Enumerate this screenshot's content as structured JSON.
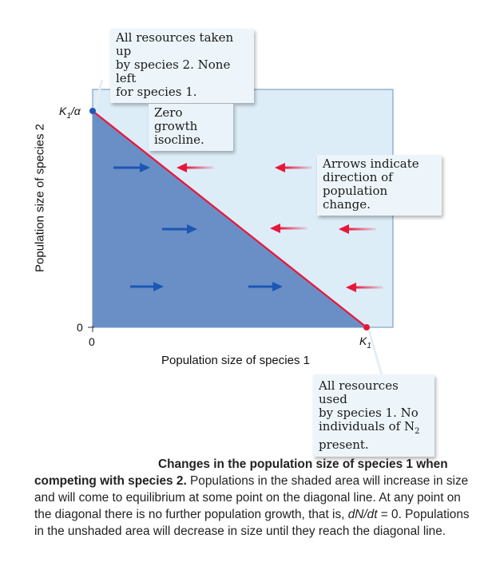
{
  "callouts": {
    "top": [
      "All resources taken up",
      "by species 2. None left",
      "for species 1."
    ],
    "isocline": [
      "Zero growth",
      "isocline."
    ],
    "arrows": [
      "Arrows indicate",
      "direction of",
      "population change."
    ],
    "bottom_lines": [
      "All resources used",
      "by species 1. No"
    ],
    "bottom_n2_prefix": "individuals of N",
    "bottom_n2_sub": "2",
    "bottom_last": "present."
  },
  "axes": {
    "x_label": "Population size of species 1",
    "y_label": "Population size of species 2",
    "x_origin_tick": "0",
    "y_origin_tick": "0",
    "k1_main": "K",
    "k1_sub": "1",
    "y_top_main": "K",
    "y_top_sub": "1",
    "y_top_suffix": "/α"
  },
  "caption": {
    "title": "Changes in the population size of species 1 when competing with species 2.",
    "body_1": "Populations in the shaded area will increase in size and will come to equilibrium at some point on the diagonal line. At any point on the diagonal there is no further population growth, that is, ",
    "body_math": "dN/dt",
    "body_2": " = 0. Populations in the unshaded area will decrease in size until they reach the diagonal line."
  },
  "colors": {
    "shaded": "#6a8fc6",
    "unshaded": "#dcedf8",
    "isocline": "#e8173a",
    "blue_arrow": "#1c57b4",
    "red_arrow": "#e8173a",
    "k_point_blue": "#1c57b4",
    "k_point_red": "#e8173a"
  }
}
